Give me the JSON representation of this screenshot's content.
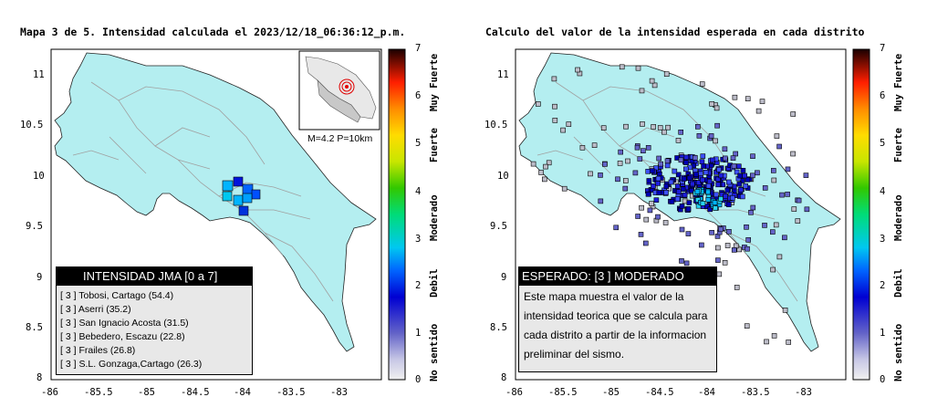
{
  "map1": {
    "title": "Mapa 3 de 5. Intensidad calculada el 2023/12/18_06:36:12_p.m.",
    "x_ticks": [
      "-86",
      "-85.5",
      "-85",
      "-84.5",
      "-84",
      "-83.5",
      "-83"
    ],
    "y_ticks": [
      "11",
      "10.5",
      "10",
      "9.5",
      "9",
      "8.5",
      "8"
    ],
    "inset_caption": "M=4.2 P=10km",
    "legend_title": "INTENSIDAD JMA [0 a 7]",
    "stations": [
      {
        "level": "[ 3 ]",
        "name": "Tobosi, Cartago (54.4)"
      },
      {
        "level": "[ 3 ]",
        "name": "Aserri (35.2)"
      },
      {
        "level": "[ 3 ]",
        "name": "San Ignacio Acosta (31.5)"
      },
      {
        "level": "[ 3 ]",
        "name": "Bebedero, Escazu (22.8)"
      },
      {
        "level": "[ 3 ]",
        "name": "Frailes (26.8)"
      },
      {
        "level": "[ 3 ]",
        "name": "S.L. Gonzaga,Cartago (26.3)"
      }
    ]
  },
  "map2": {
    "title": "Calculo del valor de la intensidad esperada en cada distrito",
    "x_ticks": [
      "-86",
      "-85.5",
      "-85",
      "-84.5",
      "-84",
      "-83.5",
      "-83"
    ],
    "y_ticks": [
      "11",
      "10.5",
      "10",
      "9.5",
      "9",
      "8.5",
      "8"
    ],
    "legend_title": "ESPERADO: [3 ] MODERADO",
    "explanation": "Este mapa muestra el valor de la intensidad teorica que se calcula para cada distrito a partir de la informacion preliminar del sismo."
  },
  "colorbar": {
    "ticks": [
      "0",
      "1",
      "2",
      "3",
      "4",
      "5",
      "6",
      "7"
    ],
    "words": [
      "No sentido",
      "Debil",
      "Moderado",
      "Fuerte",
      "Muy Fuerte"
    ]
  },
  "colors": {
    "land": "#b4eef0",
    "roads": "#a0a0a0",
    "frame": "#000000"
  }
}
